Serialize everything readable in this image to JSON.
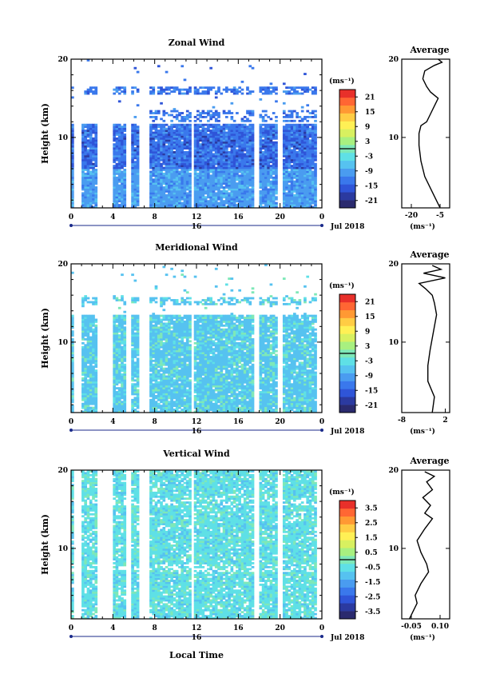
{
  "figure": {
    "x_axis_label": "Local Time",
    "date_label": "Jul 2018"
  },
  "colors": {
    "ramp": [
      "#2a2a6e",
      "#2b3aa0",
      "#2f55d8",
      "#3a78ec",
      "#4a9cf0",
      "#56c2f0",
      "#5fe0e6",
      "#7ee8b8",
      "#a8f080",
      "#d8f060",
      "#fff055",
      "#ffcc44",
      "#ff9933",
      "#ff6633",
      "#e8302a"
    ]
  },
  "chart_data": [
    {
      "type": "heatmap",
      "title": "Zonal Wind",
      "ylabel": "Height (km)",
      "x_ticks": [
        "0",
        "4",
        "8",
        "12",
        "16",
        "20",
        "0"
      ],
      "x_day_label": "16",
      "xlim": [
        0,
        24
      ],
      "y_ticks": [
        "20",
        "10"
      ],
      "ylim": [
        1,
        20
      ],
      "colorbar": {
        "units_label": "(ms⁻¹)",
        "tick_labels": [
          "21",
          "15",
          "9",
          "3",
          "-3",
          "-9",
          "-15",
          "-21"
        ],
        "range": [
          -24,
          24
        ],
        "zero_line": 0
      },
      "average_profile": {
        "title": "Average",
        "units_label": "(ms⁻¹)",
        "x_ticks": [
          "-20",
          "-5"
        ],
        "y_ticks": [
          "20",
          "10"
        ],
        "xlim": [
          -25,
          0
        ],
        "points": [
          [
            -5,
            1
          ],
          [
            -9,
            3
          ],
          [
            -13,
            5
          ],
          [
            -15,
            7
          ],
          [
            -16,
            9
          ],
          [
            -16,
            10.5
          ],
          [
            -15,
            11.5
          ],
          [
            -12,
            12
          ],
          [
            -10,
            13
          ],
          [
            -8,
            14
          ],
          [
            -6,
            15
          ],
          [
            -10,
            15.8
          ],
          [
            -12,
            16.5
          ],
          [
            -14,
            17.5
          ],
          [
            -13,
            18.5
          ],
          [
            -8,
            19.2
          ],
          [
            -4,
            19.6
          ],
          [
            -6,
            20
          ]
        ]
      }
    },
    {
      "type": "heatmap",
      "title": "Meridional Wind",
      "ylabel": "Height (km)",
      "x_ticks": [
        "0",
        "4",
        "8",
        "12",
        "16",
        "20",
        "0"
      ],
      "x_day_label": "16",
      "xlim": [
        0,
        24
      ],
      "y_ticks": [
        "20",
        "10"
      ],
      "ylim": [
        1,
        20
      ],
      "colorbar": {
        "units_label": "(ms⁻¹)",
        "tick_labels": [
          "21",
          "15",
          "9",
          "3",
          "-3",
          "-9",
          "-15",
          "-21"
        ],
        "range": [
          -24,
          24
        ],
        "zero_line": 0
      },
      "average_profile": {
        "title": "Average",
        "units_label": "(ms⁻¹)",
        "x_ticks": [
          "-8",
          "2"
        ],
        "y_ticks": [
          "20",
          "10"
        ],
        "xlim": [
          -8,
          3
        ],
        "points": [
          [
            -1,
            1
          ],
          [
            -0.5,
            3
          ],
          [
            -2,
            5
          ],
          [
            -2,
            7
          ],
          [
            -1.5,
            9
          ],
          [
            -1,
            10.5
          ],
          [
            -0.5,
            12
          ],
          [
            0,
            13.5
          ],
          [
            -0.5,
            15
          ],
          [
            -1,
            16
          ],
          [
            -2.5,
            16.8
          ],
          [
            -4,
            17.5
          ],
          [
            2,
            18.2
          ],
          [
            -3,
            18.8
          ],
          [
            1,
            19.3
          ],
          [
            -1,
            19.8
          ]
        ]
      }
    },
    {
      "type": "heatmap",
      "title": "Vertical Wind",
      "ylabel": "Height (km)",
      "x_ticks": [
        "0",
        "4",
        "8",
        "12",
        "16",
        "20",
        "0"
      ],
      "x_day_label": "16",
      "xlim": [
        0,
        24
      ],
      "y_ticks": [
        "20",
        "10"
      ],
      "ylim": [
        1,
        20
      ],
      "colorbar": {
        "units_label": "(ms⁻¹)",
        "tick_labels": [
          "3.5",
          "2.5",
          "1.5",
          "0.5",
          "-0.5",
          "-1.5",
          "-2.5",
          "-3.5"
        ],
        "range": [
          -4,
          4
        ],
        "zero_line": 0
      },
      "average_profile": {
        "title": "Average",
        "units_label": "(ms⁻¹)",
        "x_ticks": [
          "-0.05",
          "0.10"
        ],
        "y_ticks": [
          "20",
          "10"
        ],
        "xlim": [
          -0.1,
          0.15
        ],
        "points": [
          [
            -0.06,
            1
          ],
          [
            -0.04,
            2
          ],
          [
            -0.02,
            3
          ],
          [
            -0.03,
            4
          ],
          [
            0.0,
            5.5
          ],
          [
            0.04,
            7
          ],
          [
            0.03,
            8
          ],
          [
            0.0,
            9.5
          ],
          [
            -0.02,
            11
          ],
          [
            0.02,
            12.5
          ],
          [
            0.06,
            13.8
          ],
          [
            0.02,
            14.5
          ],
          [
            0.05,
            15.5
          ],
          [
            0.01,
            16.5
          ],
          [
            0.06,
            17.5
          ],
          [
            0.03,
            18.5
          ],
          [
            0.07,
            19.2
          ],
          [
            0.02,
            19.8
          ]
        ]
      }
    }
  ]
}
